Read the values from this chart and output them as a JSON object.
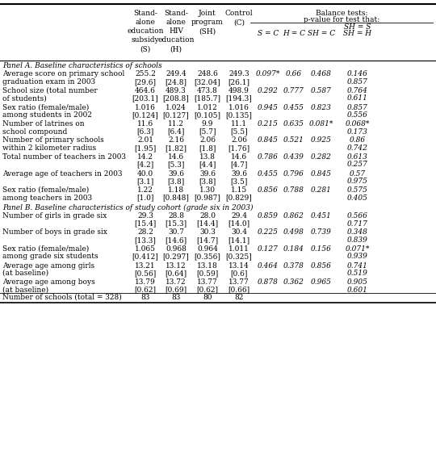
{
  "panel_a_title": "Panel A. Baseline characteristics of schools",
  "panel_b_title": "Panel B. Baseline characteristics of study cohort (grade six in 2003)",
  "rows_a": [
    {
      "label1": "Average score on primary school",
      "label2": "graduation exam in 2003",
      "S": "255.2",
      "S_sd": "[29.6]",
      "H": "249.4",
      "H_sd": "[24.8]",
      "SH": "248.6",
      "SH_sd": "[32.04]",
      "C": "249.3",
      "C_sd": "[26.1]",
      "SC": "0.097*",
      "HC": "0.66",
      "SHC": "0.468",
      "SHS_top": "0.146",
      "SHS_bot": "0.857"
    },
    {
      "label1": "School size (total number",
      "label2": "of students)",
      "S": "464.6",
      "S_sd": "[203.1]",
      "H": "489.3",
      "H_sd": "[208.8]",
      "SH": "473.8",
      "SH_sd": "[185.7]",
      "C": "498.9",
      "C_sd": "[194.3]",
      "SC": "0.292",
      "HC": "0.777",
      "SHC": "0.587",
      "SHS_top": "0.764",
      "SHS_bot": "0.611"
    },
    {
      "label1": "Sex ratio (female/male)",
      "label2": "among students in 2002",
      "S": "1.016",
      "S_sd": "[0.124]",
      "H": "1.024",
      "H_sd": "[0.127]",
      "SH": "1.012",
      "SH_sd": "[0.105]",
      "C": "1.016",
      "C_sd": "[0.135]",
      "SC": "0.945",
      "HC": "0.455",
      "SHC": "0.823",
      "SHS_top": "0.857",
      "SHS_bot": "0.556"
    },
    {
      "label1": "Number of latrines on",
      "label2": "school compound",
      "S": "11.6",
      "S_sd": "[6.3]",
      "H": "11.2",
      "H_sd": "[6.4]",
      "SH": "9.9",
      "SH_sd": "[5.7]",
      "C": "11.1",
      "C_sd": "[5.5]",
      "SC": "0.215",
      "HC": "0.635",
      "SHC": "0.081*",
      "SHS_top": "0.068*",
      "SHS_bot": "0.173"
    },
    {
      "label1": "Number of primary schools",
      "label2": "within 2 kilometer radius",
      "S": "2.01",
      "S_sd": "[1.95]",
      "H": "2.16",
      "H_sd": "[1.82]",
      "SH": "2.06",
      "SH_sd": "[1.8]",
      "C": "2.06",
      "C_sd": "[1.76]",
      "SC": "0.845",
      "HC": "0.521",
      "SHC": "0.925",
      "SHS_top": "0.86",
      "SHS_bot": "0.742"
    },
    {
      "label1": "Total number of teachers in 2003",
      "label2": "",
      "S": "14.2",
      "S_sd": "[4.2]",
      "H": "14.6",
      "H_sd": "[5.3]",
      "SH": "13.8",
      "SH_sd": "[4.4]",
      "C": "14.6",
      "C_sd": "[4.7]",
      "SC": "0.786",
      "HC": "0.439",
      "SHC": "0.282",
      "SHS_top": "0.613",
      "SHS_bot": "0.257"
    },
    {
      "label1": "Average age of teachers in 2003",
      "label2": "",
      "S": "40.0",
      "S_sd": "[3.1]",
      "H": "39.6",
      "H_sd": "[3.8]",
      "SH": "39.6",
      "SH_sd": "[3.8]",
      "C": "39.6",
      "C_sd": "[3.5]",
      "SC": "0.455",
      "HC": "0.796",
      "SHC": "0.845",
      "SHS_top": "0.57",
      "SHS_bot": "0.975"
    },
    {
      "label1": "Sex ratio (female/male)",
      "label2": "among teachers in 2003",
      "S": "1.22",
      "S_sd": "[1.0]",
      "H": "1.18",
      "H_sd": "[0.848]",
      "SH": "1.30",
      "SH_sd": "[0.987]",
      "C": "1.15",
      "C_sd": "[0.829]",
      "SC": "0.856",
      "HC": "0.788",
      "SHC": "0.281",
      "SHS_top": "0.575",
      "SHS_bot": "0.405"
    }
  ],
  "rows_b": [
    {
      "label1": "Number of girls in grade six",
      "label2": "",
      "S": "29.3",
      "S_sd": "[15.4]",
      "H": "28.8",
      "H_sd": "[15.3]",
      "SH": "28.0",
      "SH_sd": "[14.4]",
      "C": "29.4",
      "C_sd": "[14.0]",
      "SC": "0.859",
      "HC": "0.862",
      "SHC": "0.451",
      "SHS_top": "0.566",
      "SHS_bot": "0.717"
    },
    {
      "label1": "Number of boys in grade six",
      "label2": "",
      "S": "28.2",
      "S_sd": "[13.3]",
      "H": "30.7",
      "H_sd": "[14.6]",
      "SH": "30.3",
      "SH_sd": "[14.7]",
      "C": "30.4",
      "C_sd": "[14.1]",
      "SC": "0.225",
      "HC": "0.498",
      "SHC": "0.739",
      "SHS_top": "0.348",
      "SHS_bot": "0.839"
    },
    {
      "label1": "Sex ratio (female/male)",
      "label2": "among grade six students",
      "S": "1.065",
      "S_sd": "[0.412]",
      "H": "0.968",
      "H_sd": "[0.297]",
      "SH": "0.964",
      "SH_sd": "[0.356]",
      "C": "1.011",
      "C_sd": "[0.325]",
      "SC": "0.127",
      "HC": "0.184",
      "SHC": "0.156",
      "SHS_top": "0.071*",
      "SHS_bot": "0.939"
    },
    {
      "label1": "Average age among girls",
      "label2": "(at baseline)",
      "S": "13.21",
      "S_sd": "[0.56]",
      "H": "13.12",
      "H_sd": "[0.64]",
      "SH": "13.18",
      "SH_sd": "[0.59]",
      "C": "13.14",
      "C_sd": "[0.6]",
      "SC": "0.464",
      "HC": "0.378",
      "SHC": "0.856",
      "SHS_top": "0.741",
      "SHS_bot": "0.519"
    },
    {
      "label1": "Average age among boys",
      "label2": "(at baseline)",
      "S": "13.79",
      "S_sd": "[0.62]",
      "H": "13.72",
      "H_sd": "[0.69]",
      "SH": "13.77",
      "SH_sd": "[0.62]",
      "C": "13.77",
      "C_sd": "[0.66]",
      "SC": "0.878",
      "HC": "0.362",
      "SHC": "0.965",
      "SHS_top": "0.905",
      "SHS_bot": "0.601"
    }
  ],
  "footer_label": "Number of schools (total = 328)",
  "footer_vals": [
    "83",
    "83",
    "80",
    "82"
  ],
  "fs_body": 6.5,
  "fs_header": 6.5,
  "fs_panel": 6.5
}
